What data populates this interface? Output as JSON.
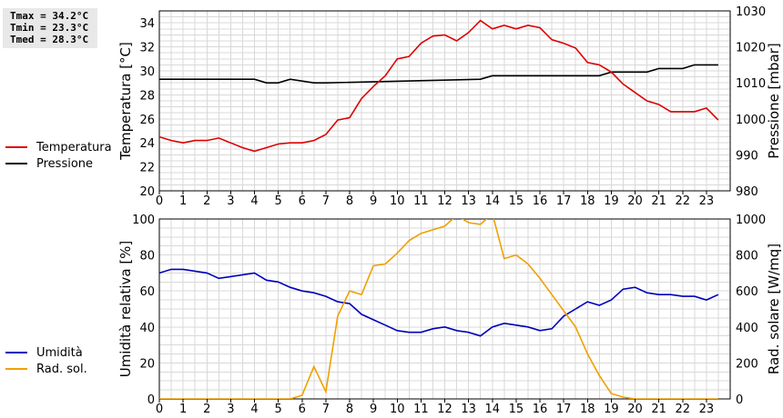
{
  "stats": {
    "tmax": "Tmax = 34.2°C",
    "tmin": "Tmin = 23.3°C",
    "tmed": "Tmed = 28.3°C"
  },
  "chart_data": [
    {
      "type": "line",
      "x_ticks": [
        "0",
        "1",
        "2",
        "3",
        "4",
        "5",
        "6",
        "7",
        "8",
        "9",
        "10",
        "11",
        "12",
        "13",
        "14",
        "15",
        "16",
        "17",
        "18",
        "19",
        "20",
        "21",
        "22",
        "23"
      ],
      "xlim": [
        0,
        24
      ],
      "ylabel": "Temperatura [°C]",
      "ylim": [
        20,
        35
      ],
      "y_ticks": [
        "20",
        "22",
        "24",
        "26",
        "28",
        "30",
        "32",
        "34"
      ],
      "y2label": "Pressione [mbar]",
      "y2lim": [
        980,
        1030
      ],
      "y2_ticks": [
        "980",
        "990",
        "1000",
        "1010",
        "1020",
        "1030"
      ],
      "grid": true,
      "legend_placement": "left",
      "series": [
        {
          "name": "Temperatura",
          "axis": "left",
          "color": "#dd0000",
          "x": [
            0,
            0.5,
            1,
            1.5,
            2,
            2.5,
            3,
            3.5,
            4,
            4.5,
            5,
            5.5,
            6,
            6.5,
            7,
            7.5,
            8,
            8.5,
            9,
            9.5,
            10,
            10.5,
            11,
            11.5,
            12,
            12.5,
            13,
            13.5,
            14,
            14.5,
            15,
            15.5,
            16,
            16.5,
            17,
            17.5,
            18,
            18.5,
            19,
            19.5,
            20,
            20.5,
            21,
            21.5,
            22,
            22.5,
            23,
            23.5
          ],
          "y": [
            24.5,
            24.2,
            24.0,
            24.2,
            24.2,
            24.4,
            24.0,
            23.6,
            23.3,
            23.6,
            23.9,
            24.0,
            24.0,
            24.2,
            24.7,
            25.9,
            26.1,
            27.7,
            28.7,
            29.6,
            31.0,
            31.2,
            32.3,
            32.9,
            33.0,
            32.5,
            33.2,
            34.2,
            33.5,
            33.8,
            33.5,
            33.8,
            33.6,
            32.6,
            32.3,
            31.9,
            30.7,
            30.5,
            29.9,
            28.9,
            28.2,
            27.5,
            27.2,
            26.6,
            26.6,
            26.6,
            26.9,
            25.9
          ]
        },
        {
          "name": "Pressione",
          "axis": "right",
          "color": "#000000",
          "x": [
            0,
            4,
            4.5,
            5,
            5.5,
            6.5,
            7,
            13.5,
            14,
            18.5,
            19,
            20.5,
            21,
            22,
            22.5,
            23.5
          ],
          "y": [
            1011,
            1011,
            1010,
            1010,
            1011,
            1010,
            1010,
            1011,
            1012,
            1012,
            1013,
            1013,
            1014,
            1014,
            1015,
            1015
          ]
        }
      ]
    },
    {
      "type": "line",
      "x_ticks": [
        "0",
        "1",
        "2",
        "3",
        "4",
        "5",
        "6",
        "7",
        "8",
        "9",
        "10",
        "11",
        "12",
        "13",
        "14",
        "15",
        "16",
        "17",
        "18",
        "19",
        "20",
        "21",
        "22",
        "23"
      ],
      "xlim": [
        0,
        24
      ],
      "ylabel": "Umidità relativa [%]",
      "ylim": [
        0,
        100
      ],
      "y_ticks": [
        "0",
        "20",
        "40",
        "60",
        "80",
        "100"
      ],
      "y2label": "Rad. solare [W/mq]",
      "y2lim": [
        0,
        1000
      ],
      "y2_ticks": [
        "0",
        "200",
        "400",
        "600",
        "800",
        "1000"
      ],
      "grid": true,
      "legend_placement": "left",
      "series": [
        {
          "name": "Umidità",
          "axis": "left",
          "color": "#0000bb",
          "x": [
            0,
            0.5,
            1,
            1.5,
            2,
            2.5,
            3,
            3.5,
            4,
            4.5,
            5,
            5.5,
            6,
            6.5,
            7,
            7.5,
            8,
            8.5,
            9,
            9.5,
            10,
            10.5,
            11,
            11.5,
            12,
            12.5,
            13,
            13.5,
            14,
            14.5,
            15,
            15.5,
            16,
            16.5,
            17,
            17.5,
            18,
            18.5,
            19,
            19.5,
            20,
            20.5,
            21,
            21.5,
            22,
            22.5,
            23,
            23.5
          ],
          "y": [
            70,
            72,
            72,
            71,
            70,
            67,
            68,
            69,
            70,
            66,
            65,
            62,
            60,
            59,
            57,
            54,
            53,
            47,
            44,
            41,
            38,
            37,
            37,
            39,
            40,
            38,
            37,
            35,
            40,
            42,
            41,
            40,
            38,
            39,
            46,
            50,
            54,
            52,
            55,
            61,
            62,
            59,
            58,
            58,
            57,
            57,
            55,
            58
          ]
        },
        {
          "name": "Rad. sol.",
          "axis": "right",
          "color": "#f0a000",
          "x": [
            0,
            0.5,
            1,
            1.5,
            2,
            2.5,
            3,
            3.5,
            4,
            4.5,
            5,
            5.5,
            6,
            6.5,
            7,
            7.5,
            8,
            8.5,
            9,
            9.5,
            10,
            10.5,
            11,
            11.5,
            12,
            12.5,
            13,
            13.5,
            14,
            14.5,
            15,
            15.5,
            16,
            16.5,
            17,
            17.5,
            18,
            18.5,
            19,
            19.5,
            20,
            20.5,
            21,
            21.5,
            22,
            22.5,
            23,
            23.5
          ],
          "y": [
            0,
            0,
            0,
            0,
            0,
            0,
            0,
            0,
            0,
            0,
            0,
            0,
            20,
            180,
            40,
            460,
            600,
            580,
            740,
            750,
            810,
            880,
            920,
            940,
            960,
            1020,
            980,
            970,
            1030,
            780,
            800,
            750,
            670,
            580,
            490,
            400,
            250,
            130,
            30,
            10,
            0,
            0,
            0,
            0,
            0,
            0,
            0,
            0
          ]
        }
      ]
    }
  ]
}
